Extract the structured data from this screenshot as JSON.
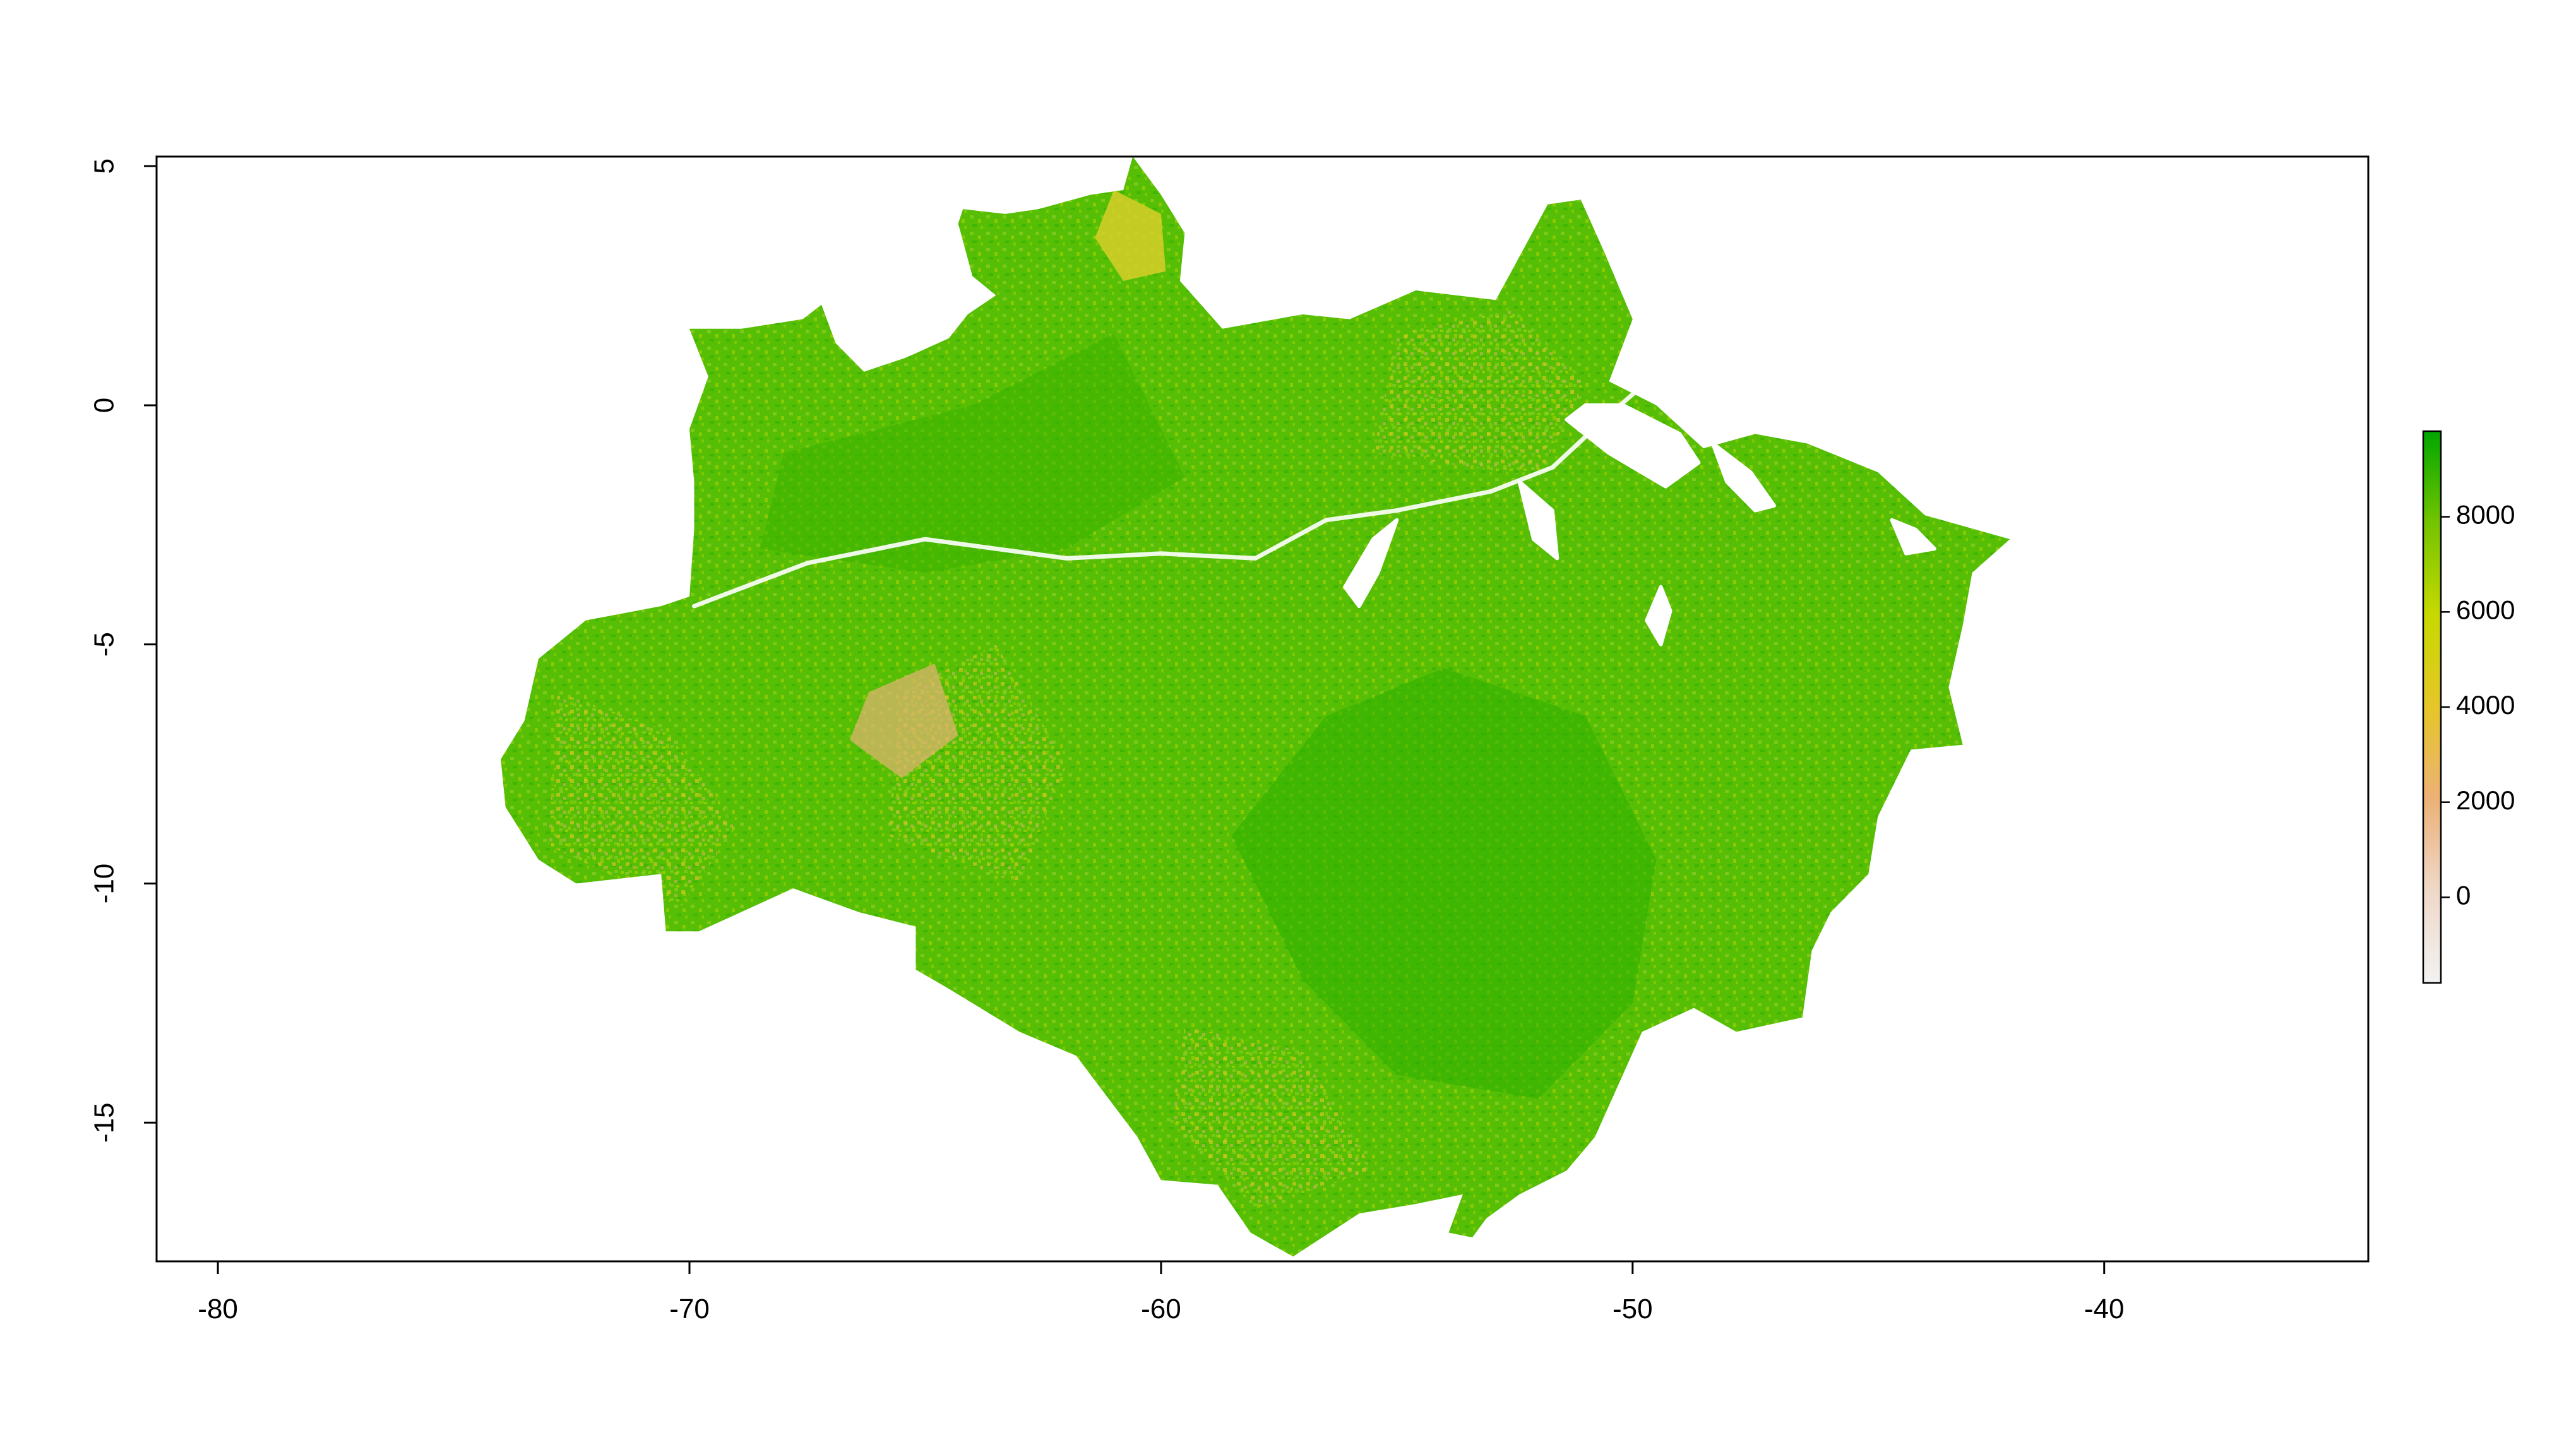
{
  "chart_data": {
    "type": "heatmap",
    "subtype": "raster-map",
    "title": "",
    "xlabel": "",
    "ylabel": "",
    "xlim": [
      -81.3,
      -34.4
    ],
    "ylim": [
      -17.9,
      5.2
    ],
    "x_ticks": [
      -80,
      -70,
      -60,
      -50,
      -40
    ],
    "x_tick_labels": [
      "-80",
      "-70",
      "-60",
      "-50",
      "-40"
    ],
    "y_ticks": [
      5,
      0,
      -5,
      -10,
      -15
    ],
    "y_tick_labels": [
      "5",
      "0",
      "-5",
      "-10",
      "-15"
    ],
    "legend": {
      "type": "colorbar",
      "placement": "right",
      "range": [
        -1800,
        9800
      ],
      "ticks": [
        0,
        2000,
        4000,
        6000,
        8000
      ],
      "tick_labels": [
        "0",
        "2000",
        "4000",
        "6000",
        "8000"
      ],
      "palette": [
        "#F2F2F2",
        "#EFD8C8",
        "#ECB176",
        "#E6C628",
        "#C7D900",
        "#74C400",
        "#00A600"
      ]
    },
    "region_outline": [
      [
        -60.6,
        5.2
      ],
      [
        -60.0,
        4.4
      ],
      [
        -59.5,
        3.6
      ],
      [
        -59.6,
        2.6
      ],
      [
        -58.7,
        1.6
      ],
      [
        -57.0,
        1.9
      ],
      [
        -56.0,
        1.8
      ],
      [
        -54.6,
        2.4
      ],
      [
        -52.9,
        2.2
      ],
      [
        -51.8,
        4.2
      ],
      [
        -51.1,
        4.3
      ],
      [
        -50.6,
        3.2
      ],
      [
        -50.0,
        1.8
      ],
      [
        -50.5,
        0.5
      ],
      [
        -49.5,
        0.0
      ],
      [
        -48.5,
        -0.9
      ],
      [
        -47.4,
        -0.6
      ],
      [
        -46.3,
        -0.8
      ],
      [
        -44.8,
        -1.4
      ],
      [
        -43.8,
        -2.3
      ],
      [
        -42.0,
        -2.8
      ],
      [
        -42.8,
        -3.5
      ],
      [
        -43.0,
        -4.6
      ],
      [
        -43.3,
        -5.9
      ],
      [
        -43.0,
        -7.1
      ],
      [
        -44.1,
        -7.2
      ],
      [
        -44.8,
        -8.6
      ],
      [
        -45.0,
        -9.8
      ],
      [
        -45.8,
        -10.6
      ],
      [
        -46.2,
        -11.4
      ],
      [
        -46.4,
        -12.8
      ],
      [
        -47.8,
        -13.1
      ],
      [
        -48.7,
        -12.6
      ],
      [
        -49.8,
        -13.1
      ],
      [
        -50.8,
        -15.3
      ],
      [
        -51.4,
        -16.0
      ],
      [
        -52.4,
        -16.5
      ],
      [
        -53.1,
        -17.0
      ],
      [
        -53.4,
        -17.4
      ],
      [
        -53.9,
        -17.3
      ],
      [
        -53.6,
        -16.5
      ],
      [
        -54.6,
        -16.7
      ],
      [
        -55.8,
        -16.9
      ],
      [
        -57.2,
        -17.8
      ],
      [
        -58.1,
        -17.3
      ],
      [
        -58.8,
        -16.3
      ],
      [
        -60.0,
        -16.2
      ],
      [
        -60.5,
        -15.3
      ],
      [
        -61.8,
        -13.6
      ],
      [
        -63.0,
        -13.1
      ],
      [
        -64.5,
        -12.2
      ],
      [
        -65.2,
        -11.8
      ],
      [
        -65.2,
        -10.9
      ],
      [
        -66.4,
        -10.6
      ],
      [
        -67.8,
        -10.1
      ],
      [
        -69.8,
        -11.0
      ],
      [
        -70.5,
        -11.0
      ],
      [
        -70.6,
        -9.8
      ],
      [
        -72.4,
        -10.0
      ],
      [
        -73.2,
        -9.5
      ],
      [
        -73.9,
        -8.4
      ],
      [
        -74.0,
        -7.4
      ],
      [
        -73.5,
        -6.6
      ],
      [
        -73.2,
        -5.3
      ],
      [
        -72.2,
        -4.5
      ],
      [
        -70.6,
        -4.2
      ],
      [
        -70.0,
        -4.0
      ],
      [
        -69.9,
        -2.6
      ],
      [
        -69.9,
        -1.6
      ],
      [
        -70.0,
        -0.5
      ],
      [
        -69.6,
        0.6
      ],
      [
        -70.0,
        1.6
      ],
      [
        -68.9,
        1.6
      ],
      [
        -67.6,
        1.8
      ],
      [
        -67.2,
        2.1
      ],
      [
        -66.9,
        1.3
      ],
      [
        -66.3,
        0.7
      ],
      [
        -65.4,
        1.0
      ],
      [
        -64.5,
        1.4
      ],
      [
        -64.1,
        1.9
      ],
      [
        -63.5,
        2.3
      ],
      [
        -64.0,
        2.7
      ],
      [
        -64.3,
        3.8
      ],
      [
        -64.2,
        4.1
      ],
      [
        -63.3,
        4.0
      ],
      [
        -62.6,
        4.1
      ],
      [
        -61.5,
        4.4
      ],
      [
        -60.8,
        4.5
      ],
      [
        -60.6,
        5.2
      ]
    ],
    "value_regions": {
      "forest_core_high": [
        [
          -54.0,
          -5.5
        ],
        [
          -51.0,
          -6.5
        ],
        [
          -49.5,
          -9.5
        ],
        [
          -50.0,
          -12.5
        ],
        [
          -52.0,
          -14.5
        ],
        [
          -55.0,
          -14.0
        ],
        [
          -57.0,
          -12.0
        ],
        [
          -58.5,
          -9.0
        ],
        [
          -56.5,
          -6.5
        ]
      ],
      "northwest_high": [
        [
          -68.0,
          -1.0
        ],
        [
          -64.0,
          0.0
        ],
        [
          -61.0,
          1.5
        ],
        [
          -59.5,
          -1.5
        ],
        [
          -62.0,
          -3.0
        ],
        [
          -65.0,
          -3.5
        ],
        [
          -68.5,
          -3.0
        ]
      ],
      "mid_values_west": [
        [
          -72.8,
          -6.0
        ],
        [
          -70.5,
          -6.8
        ],
        [
          -69.0,
          -8.8
        ],
        [
          -70.2,
          -10.5
        ],
        [
          -73.0,
          -9.2
        ]
      ],
      "mid_values_central": [
        [
          -65.5,
          -6.0
        ],
        [
          -63.5,
          -5.0
        ],
        [
          -62.0,
          -7.5
        ],
        [
          -63.0,
          -10.0
        ],
        [
          -65.8,
          -9.0
        ]
      ],
      "mid_values_northeast": [
        [
          -55.0,
          1.5
        ],
        [
          -52.5,
          2.0
        ],
        [
          -51.0,
          0.5
        ],
        [
          -52.0,
          -1.5
        ],
        [
          -55.5,
          -1.0
        ]
      ],
      "mid_values_roraima": [
        [
          -61.0,
          4.5
        ],
        [
          -60.0,
          4.0
        ],
        [
          -59.9,
          2.8
        ],
        [
          -60.8,
          2.6
        ],
        [
          -61.4,
          3.5
        ]
      ],
      "mid_values_south": [
        [
          -59.5,
          -13.0
        ],
        [
          -57.0,
          -13.5
        ],
        [
          -55.5,
          -16.0
        ],
        [
          -58.0,
          -16.8
        ],
        [
          -59.8,
          -15.0
        ]
      ],
      "low_patches": [
        [
          -66.2,
          -6.0
        ],
        [
          -64.8,
          -5.4
        ],
        [
          -64.3,
          -6.9
        ],
        [
          -65.5,
          -7.8
        ],
        [
          -66.6,
          -7.0
        ]
      ]
    },
    "water_bodies": {
      "amazon_river": [
        [
          -69.9,
          -4.2
        ],
        [
          -67.5,
          -3.3
        ],
        [
          -65.0,
          -2.8
        ],
        [
          -62.0,
          -3.2
        ],
        [
          -60.0,
          -3.1
        ],
        [
          -58.0,
          -3.2
        ],
        [
          -56.5,
          -2.4
        ],
        [
          -55.0,
          -2.2
        ],
        [
          -53.0,
          -1.8
        ],
        [
          -51.7,
          -1.3
        ],
        [
          -50.5,
          -0.2
        ],
        [
          -49.8,
          0.4
        ]
      ],
      "lower_amazon_mouth": [
        [
          -51.4,
          -0.3
        ],
        [
          -50.5,
          -1.0
        ],
        [
          -49.3,
          -1.7
        ],
        [
          -48.6,
          -1.2
        ],
        [
          -49.0,
          -0.6
        ],
        [
          -50.2,
          0.0
        ],
        [
          -51.0,
          0.0
        ]
      ],
      "tocantins_estuary": [
        [
          -48.3,
          -0.8
        ],
        [
          -47.5,
          -1.4
        ],
        [
          -47.0,
          -2.1
        ],
        [
          -47.4,
          -2.2
        ],
        [
          -48.0,
          -1.6
        ]
      ],
      "tapajos_arm": [
        [
          -55.0,
          -2.4
        ],
        [
          -55.4,
          -3.5
        ],
        [
          -55.8,
          -4.2
        ],
        [
          -56.1,
          -3.8
        ],
        [
          -55.5,
          -2.8
        ]
      ],
      "xingu_arm": [
        [
          -52.4,
          -1.6
        ],
        [
          -52.1,
          -2.8
        ],
        [
          -51.6,
          -3.2
        ],
        [
          -51.7,
          -2.2
        ]
      ],
      "tocantins_reservoir": [
        [
          -49.4,
          -3.8
        ],
        [
          -49.7,
          -4.5
        ],
        [
          -49.4,
          -5.0
        ],
        [
          -49.2,
          -4.3
        ]
      ],
      "maranhao_bay": [
        [
          -44.5,
          -2.4
        ],
        [
          -44.0,
          -2.6
        ],
        [
          -43.6,
          -3.0
        ],
        [
          -44.2,
          -3.1
        ]
      ]
    }
  }
}
